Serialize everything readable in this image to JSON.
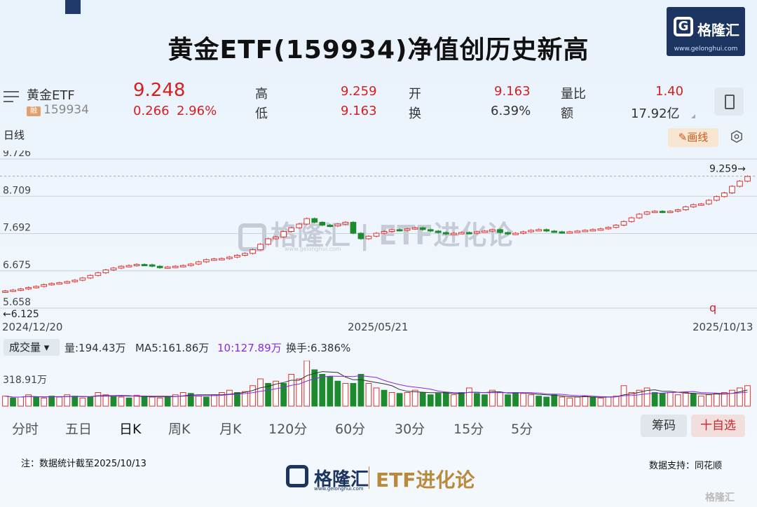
{
  "header": {
    "title": "黄金ETF(159934)净值创历史新高",
    "logo_name": "格隆汇",
    "logo_url": "www.gelonghui.com"
  },
  "quote": {
    "name": "黄金ETF",
    "badge": "融",
    "code": "159934",
    "price": "9.248",
    "change": "0.266",
    "change_pct": "2.96%",
    "high_label": "高",
    "high": "9.259",
    "low_label": "低",
    "low": "9.163",
    "open_label": "开",
    "open": "9.163",
    "turnover_label": "换",
    "turnover": "6.39%",
    "vol_ratio_label": "量比",
    "vol_ratio": "1.40",
    "amount_label": "额",
    "amount": "17.92亿"
  },
  "chart": {
    "period_label": "日线",
    "draw_button": "画线",
    "max_annotation": "9.259→",
    "min_annotation": "←6.125",
    "right_marker": "q",
    "dates": [
      "2024/12/20",
      "2025/05/21",
      "2025/10/13"
    ],
    "colors": {
      "up": "#e03030",
      "down": "#1e8a2e",
      "grid": "#c8d2dc"
    }
  },
  "chart_data": {
    "type": "line",
    "title": "",
    "xlabel": "",
    "ylabel": "",
    "y_ticks": [
      "9.726",
      "8.709",
      "7.692",
      "6.675",
      "5.658"
    ],
    "ylim": [
      5.658,
      9.726
    ],
    "x_labels": [
      "2024/12/20",
      "2025/05/21",
      "2025/10/13"
    ],
    "series": [
      {
        "values": [
          6.125,
          6.15,
          6.18,
          6.22,
          6.25,
          6.3,
          6.33,
          6.35,
          6.38,
          6.42,
          6.48,
          6.55,
          6.62,
          6.7,
          6.75,
          6.8,
          6.82,
          6.85,
          6.84,
          6.8,
          6.76,
          6.78,
          6.8,
          6.82,
          6.86,
          6.92,
          6.98,
          7.0,
          7.01,
          7.05,
          7.1,
          7.15,
          7.25,
          7.4,
          7.55,
          7.6,
          7.75,
          7.85,
          7.95,
          8.1,
          8.0,
          7.92,
          7.9,
          7.95,
          8.0,
          7.7,
          7.55,
          7.62,
          7.7,
          7.75,
          7.8,
          7.78,
          7.82,
          7.85,
          7.8,
          7.76,
          7.72,
          7.68,
          7.7,
          7.72,
          7.7,
          7.74,
          7.76,
          7.8,
          7.72,
          7.68,
          7.7,
          7.74,
          7.78,
          7.8,
          7.76,
          7.74,
          7.72,
          7.74,
          7.76,
          7.78,
          7.8,
          7.82,
          7.86,
          7.92,
          8.02,
          8.12,
          8.22,
          8.28,
          8.3,
          8.28,
          8.3,
          8.34,
          8.42,
          8.48,
          8.5,
          8.6,
          8.7,
          8.8,
          8.98,
          9.12,
          9.248
        ]
      }
    ]
  },
  "volume": {
    "selector": "成交量",
    "volume_text": "量:194.43万",
    "ma5_text": "MA5:161.86万",
    "ma10_text": "10:127.89万",
    "turnover_text": "换手:6.386%",
    "axis_label": "318.91万"
  },
  "volume_data": {
    "type": "bar",
    "values": [
      0.22,
      0.18,
      0.2,
      0.25,
      0.2,
      0.18,
      0.22,
      0.2,
      0.25,
      0.22,
      0.18,
      0.2,
      0.3,
      0.25,
      0.22,
      0.2,
      0.18,
      0.24,
      0.22,
      0.2,
      0.18,
      0.2,
      0.25,
      0.3,
      0.28,
      0.22,
      0.2,
      0.25,
      0.3,
      0.35,
      0.3,
      0.32,
      0.45,
      0.6,
      0.5,
      0.55,
      0.5,
      0.7,
      0.6,
      1.0,
      0.8,
      0.7,
      0.65,
      0.55,
      0.5,
      0.5,
      0.7,
      0.5,
      0.4,
      0.35,
      0.3,
      0.28,
      0.3,
      0.35,
      0.3,
      0.25,
      0.28,
      0.3,
      0.25,
      0.3,
      0.4,
      0.28,
      0.25,
      0.35,
      0.3,
      0.25,
      0.3,
      0.28,
      0.25,
      0.22,
      0.2,
      0.25,
      0.2,
      0.18,
      0.2,
      0.22,
      0.2,
      0.18,
      0.2,
      0.22,
      0.45,
      0.3,
      0.35,
      0.4,
      0.3,
      0.28,
      0.3,
      0.25,
      0.3,
      0.28,
      0.22,
      0.25,
      0.28,
      0.3,
      0.35,
      0.4,
      0.45
    ],
    "directions": [
      1,
      0,
      1,
      1,
      0,
      1,
      0,
      1,
      1,
      0,
      1,
      0,
      1,
      1,
      0,
      1,
      0,
      1,
      0,
      1,
      1,
      0,
      1,
      1,
      0,
      1,
      0,
      1,
      1,
      1,
      0,
      1,
      1,
      1,
      0,
      1,
      0,
      1,
      1,
      1,
      0,
      0,
      0,
      0,
      1,
      0,
      0,
      1,
      1,
      0,
      1,
      0,
      1,
      1,
      0,
      0,
      0,
      0,
      1,
      0,
      1,
      0,
      0,
      1,
      1,
      0,
      0,
      1,
      1,
      0,
      0,
      0,
      1,
      1,
      1,
      1,
      0,
      1,
      1,
      1,
      1,
      1,
      1,
      1,
      0,
      0,
      1,
      1,
      1,
      0,
      1,
      1,
      1,
      1,
      1,
      1,
      1
    ]
  },
  "periods": {
    "items": [
      "分时",
      "五日",
      "日K",
      "周K",
      "月K",
      "120分",
      "60分",
      "30分",
      "15分",
      "5分"
    ],
    "active": "日K",
    "chouma": "筹码",
    "add_watch": "十自选"
  },
  "footer": {
    "note": "注：数据统计截至2025/10/13",
    "source": "数据支持：同花顺",
    "logo_name": "格隆汇",
    "logo_url": "www.gelonghui.com",
    "brand": "ETF进化论",
    "watermark_corner": "格隆汇"
  }
}
